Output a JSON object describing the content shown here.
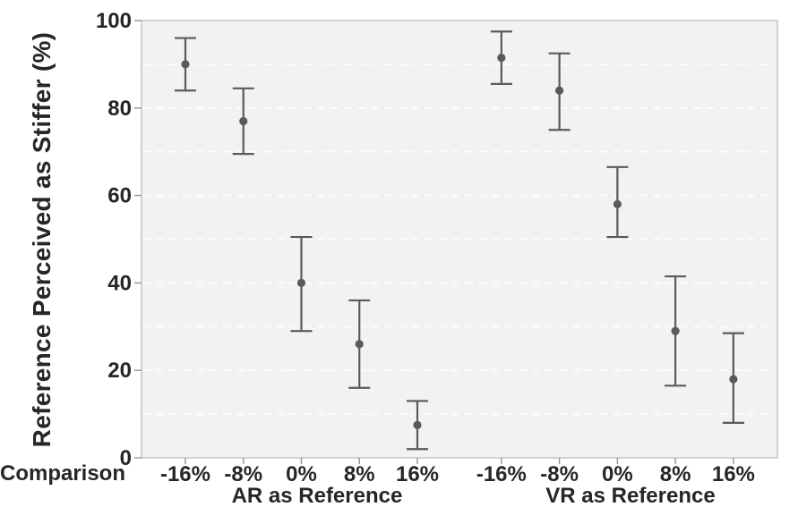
{
  "chart_data": {
    "type": "scatter",
    "variant": "point estimates with 95% CI error bars, two facets",
    "title": "",
    "xlabel": "Comparison",
    "ylabel": "Reference Perceived as Stiffer (%)",
    "ylim": [
      0,
      100
    ],
    "yticks": [
      0,
      20,
      40,
      60,
      80,
      100
    ],
    "grid": "horizontal dashed gridlines every 10 on light gray panel",
    "legend": "none",
    "categories": [
      "-16%",
      "-8%",
      "0%",
      "8%",
      "16%"
    ],
    "groups": [
      {
        "label": "AR as Reference",
        "points": [
          {
            "x": "-16%",
            "mean": 90,
            "ci_low": 84,
            "ci_high": 96
          },
          {
            "x": "-8%",
            "mean": 77,
            "ci_low": 69.5,
            "ci_high": 84.5
          },
          {
            "x": "0%",
            "mean": 40,
            "ci_low": 29,
            "ci_high": 50.5
          },
          {
            "x": "8%",
            "mean": 26,
            "ci_low": 16,
            "ci_high": 36
          },
          {
            "x": "16%",
            "mean": 7.5,
            "ci_low": 2,
            "ci_high": 13
          }
        ]
      },
      {
        "label": "VR as Reference",
        "points": [
          {
            "x": "-16%",
            "mean": 91.5,
            "ci_low": 85.5,
            "ci_high": 97.5
          },
          {
            "x": "-8%",
            "mean": 84,
            "ci_low": 75,
            "ci_high": 92.5
          },
          {
            "x": "0%",
            "mean": 58,
            "ci_low": 50.5,
            "ci_high": 66.5
          },
          {
            "x": "8%",
            "mean": 29,
            "ci_low": 16.5,
            "ci_high": 41.5
          },
          {
            "x": "16%",
            "mean": 18,
            "ci_low": 8,
            "ci_high": 28.5
          }
        ]
      }
    ]
  },
  "colors": {
    "marker": "#5a5a5a",
    "panel_bg": "#f2f2f2",
    "gridline": "#fdfdfd",
    "panel_border": "#c4c4c4",
    "tick": "#9a9a9a",
    "text": "#262626"
  }
}
